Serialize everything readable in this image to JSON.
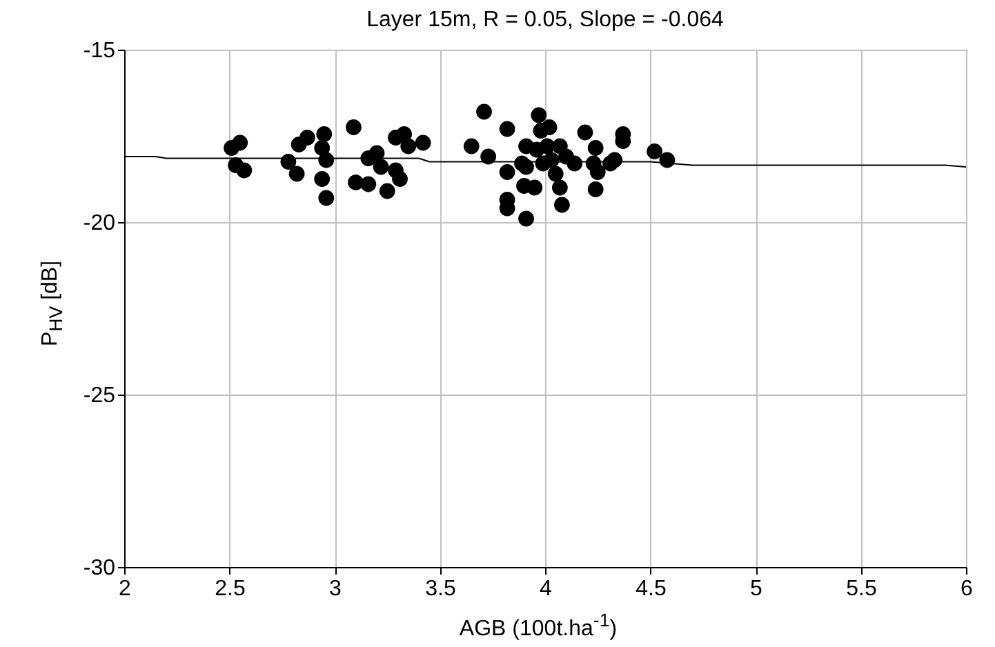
{
  "chart_data": {
    "type": "scatter",
    "title": "Layer 15m, R = 0.05, Slope = -0.064",
    "xlabel": "AGB (100t.ha$^{-1}$)",
    "ylabel": "P$_{HV}$ [dB]",
    "xlim": [
      2,
      6
    ],
    "xticks": [
      2,
      2.5,
      3,
      3.5,
      4,
      4.5,
      5,
      5.5,
      6
    ],
    "ylim": [
      -30,
      -15
    ],
    "yticks": [
      -30,
      -25,
      -20,
      -15
    ],
    "grid": true,
    "series": [
      {
        "color": "#000000",
        "marker": "circle",
        "x": [
          2.51,
          2.55,
          2.53,
          2.57,
          2.78,
          2.82,
          2.83,
          2.87,
          2.95,
          2.94,
          2.96,
          2.94,
          2.96,
          3.09,
          3.1,
          3.16,
          3.16,
          3.2,
          3.22,
          3.29,
          3.31,
          3.25,
          3.29,
          3.33,
          3.35,
          3.42,
          3.65,
          3.71,
          3.73,
          3.82,
          3.82,
          3.82,
          3.82,
          3.91,
          3.91,
          3.89,
          3.9,
          3.95,
          3.97,
          3.98,
          4.02,
          4.01,
          3.99,
          4.03,
          4.05,
          4.07,
          4.07,
          4.08,
          4.1,
          4.14,
          4.19,
          4.24,
          4.23,
          4.25,
          4.24,
          4.31,
          4.33,
          4.37,
          4.37,
          4.52,
          4.58,
          3.96,
          3.91
        ],
        "values": [
          -17.85,
          -17.7,
          -18.35,
          -18.5,
          -18.25,
          -18.6,
          -17.75,
          -17.55,
          -17.45,
          -17.85,
          -18.2,
          -18.75,
          -19.3,
          -17.25,
          -18.85,
          -18.9,
          -18.15,
          -18.0,
          -18.4,
          -18.5,
          -18.75,
          -19.1,
          -17.55,
          -17.45,
          -17.8,
          -17.7,
          -17.8,
          -16.8,
          -18.1,
          -17.3,
          -18.55,
          -19.35,
          -19.6,
          -19.9,
          -17.8,
          -18.3,
          -18.95,
          -19.0,
          -16.9,
          -17.35,
          -17.25,
          -17.8,
          -18.3,
          -18.2,
          -18.6,
          -17.8,
          -19.0,
          -19.5,
          -18.1,
          -18.3,
          -17.4,
          -17.85,
          -18.3,
          -18.55,
          -19.05,
          -18.3,
          -18.2,
          -17.45,
          -17.65,
          -17.95,
          -18.2,
          -17.9,
          -18.4
        ]
      },
      {
        "type": "line",
        "color": "#000000",
        "x": [
          2,
          2.15,
          2.2,
          3.4,
          3.45,
          4.5,
          4.7,
          5.9,
          6
        ],
        "values": [
          -18.1,
          -18.1,
          -18.15,
          -18.15,
          -18.25,
          -18.25,
          -18.35,
          -18.35,
          -18.4
        ]
      }
    ]
  }
}
